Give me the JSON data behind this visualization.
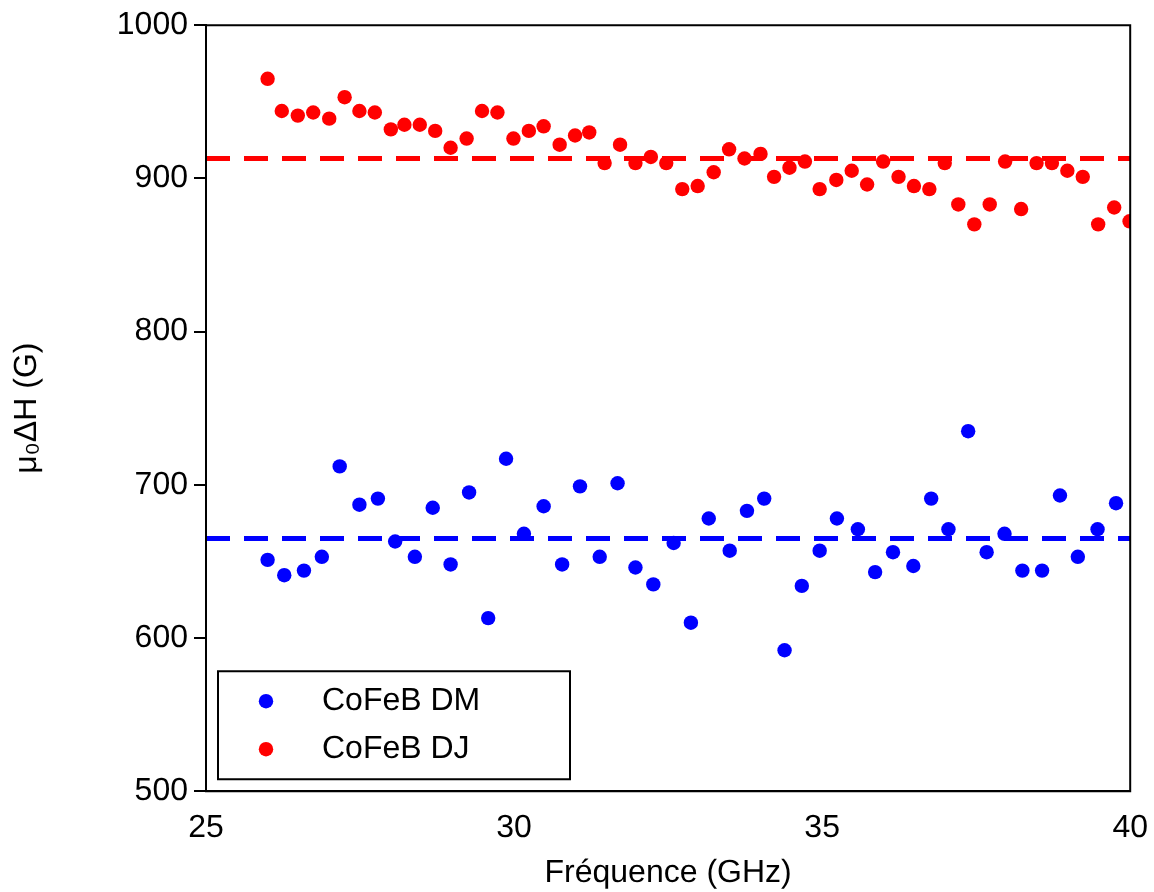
{
  "chart_data": {
    "type": "scatter",
    "xlabel": "Fréquence (GHz)",
    "ylabel": "μ₀ΔH (G)",
    "xlim": [
      25,
      40
    ],
    "xticks": [
      25,
      30,
      35,
      40
    ],
    "ylim": [
      500,
      1000
    ],
    "yticks": [
      500,
      600,
      700,
      800,
      900,
      1000
    ],
    "marker": "circle",
    "legend": "bottom left",
    "grid": false,
    "series": [
      {
        "name": "CoFeB DM",
        "color": "#0000ff",
        "x": [
          26.0,
          26.27,
          26.59,
          26.88,
          27.17,
          27.49,
          27.79,
          28.07,
          28.39,
          28.68,
          28.97,
          29.27,
          29.58,
          29.87,
          30.16,
          30.48,
          30.78,
          31.07,
          31.39,
          31.68,
          31.97,
          32.26,
          32.59,
          32.87,
          33.16,
          33.5,
          33.78,
          34.06,
          34.39,
          34.67,
          34.96,
          35.24,
          35.58,
          35.86,
          36.15,
          36.48,
          36.77,
          37.05,
          37.37,
          37.67,
          37.96,
          38.25,
          38.57,
          38.86,
          39.15,
          39.47,
          39.77
        ],
        "values": [
          651,
          641,
          644,
          653,
          712,
          687,
          691,
          663,
          653,
          685,
          648,
          695,
          613,
          717,
          668,
          686,
          648,
          699,
          653,
          701,
          646,
          635,
          662,
          610,
          678,
          657,
          683,
          691,
          592,
          634,
          657,
          678,
          671,
          643,
          656,
          647,
          691,
          671,
          735,
          656,
          668,
          644,
          644,
          693,
          653,
          671,
          688
        ]
      },
      {
        "name": "CoFeB DJ",
        "color": "#ff0000",
        "x": [
          26.0,
          26.23,
          26.49,
          26.74,
          27.0,
          27.25,
          27.49,
          27.74,
          28.0,
          28.22,
          28.47,
          28.72,
          28.97,
          29.23,
          29.48,
          29.73,
          29.99,
          30.24,
          30.48,
          30.74,
          30.99,
          31.22,
          31.47,
          31.72,
          31.97,
          32.22,
          32.47,
          32.73,
          32.98,
          33.24,
          33.49,
          33.74,
          34.0,
          34.22,
          34.47,
          34.72,
          34.96,
          35.23,
          35.48,
          35.73,
          35.99,
          36.24,
          36.49,
          36.74,
          36.99,
          37.21,
          37.47,
          37.72,
          37.97,
          38.23,
          38.48,
          38.73,
          38.98,
          39.23,
          39.48,
          39.74,
          39.99
        ],
        "values": [
          965,
          944,
          941,
          943,
          939,
          953,
          944,
          943,
          932,
          935,
          935,
          931,
          920,
          926,
          944,
          943,
          926,
          931,
          934,
          922,
          928,
          930,
          910,
          922,
          910,
          914,
          910,
          893,
          895,
          904,
          919,
          913,
          916,
          901,
          907,
          911,
          893,
          899,
          905,
          896,
          911,
          901,
          895,
          893,
          910,
          883,
          870,
          883,
          911,
          880,
          910,
          910,
          905,
          901,
          870,
          881,
          872
        ]
      }
    ],
    "ref_lines": [
      {
        "axis": "y",
        "value": 665,
        "color": "#0000ff",
        "line_style": "dashed"
      },
      {
        "axis": "y",
        "value": 913,
        "color": "#ff0000",
        "line_style": "dashed"
      }
    ]
  }
}
